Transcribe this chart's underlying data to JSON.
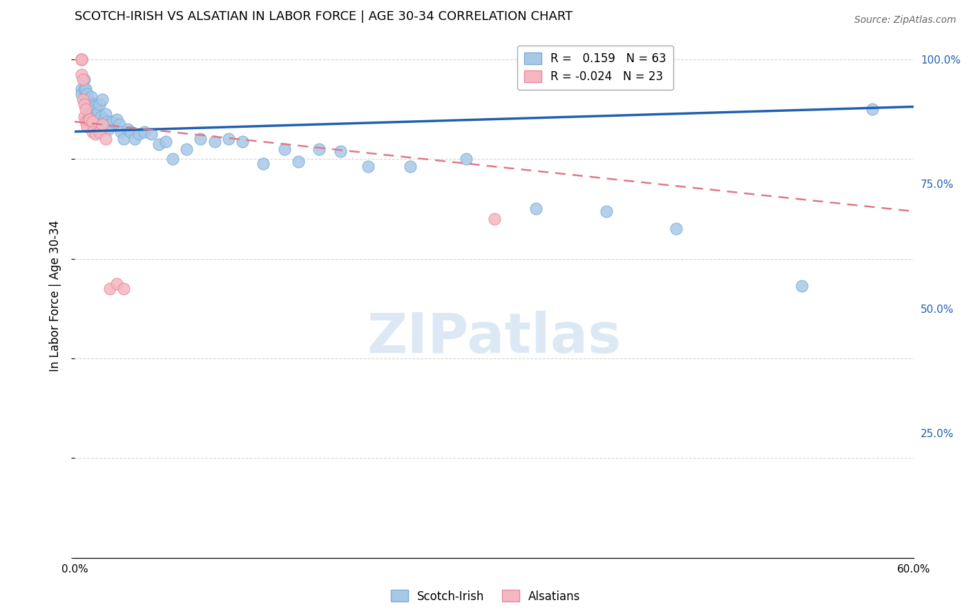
{
  "title": "SCOTCH-IRISH VS ALSATIAN IN LABOR FORCE | AGE 30-34 CORRELATION CHART",
  "source": "Source: ZipAtlas.com",
  "xlabel": "",
  "ylabel": "In Labor Force | Age 30-34",
  "xlim": [
    0.0,
    0.6
  ],
  "ylim": [
    0.0,
    1.05
  ],
  "xticks": [
    0.0,
    0.1,
    0.2,
    0.3,
    0.4,
    0.5,
    0.6
  ],
  "xticklabels": [
    "0.0%",
    "",
    "",
    "",
    "",
    "",
    "60.0%"
  ],
  "yticks_right": [
    0.0,
    0.25,
    0.5,
    0.75,
    1.0
  ],
  "ytick_labels_right": [
    "",
    "25.0%",
    "50.0%",
    "75.0%",
    "100.0%"
  ],
  "legend_blue_R": "0.159",
  "legend_blue_N": "63",
  "legend_pink_R": "-0.024",
  "legend_pink_N": "23",
  "blue_color": "#a8c8e8",
  "blue_edge_color": "#7aadd0",
  "pink_color": "#f5b8c0",
  "pink_edge_color": "#e888a0",
  "line_blue_color": "#2060b0",
  "line_pink_color": "#e07888",
  "watermark": "ZIPatlas",
  "watermark_color": "#dce9f5",
  "blue_line_x0": 0.0,
  "blue_line_y0": 0.855,
  "blue_line_x1": 0.6,
  "blue_line_y1": 0.905,
  "pink_line_x0": 0.0,
  "pink_line_y0": 0.875,
  "pink_line_x1": 0.6,
  "pink_line_y1": 0.695,
  "blue_scatter_x": [
    0.005,
    0.005,
    0.007,
    0.007,
    0.008,
    0.008,
    0.009,
    0.009,
    0.01,
    0.01,
    0.01,
    0.01,
    0.01,
    0.01,
    0.012,
    0.012,
    0.013,
    0.013,
    0.014,
    0.015,
    0.015,
    0.016,
    0.017,
    0.018,
    0.019,
    0.02,
    0.021,
    0.022,
    0.023,
    0.024,
    0.025,
    0.027,
    0.03,
    0.032,
    0.033,
    0.035,
    0.038,
    0.04,
    0.043,
    0.046,
    0.05,
    0.055,
    0.06,
    0.065,
    0.07,
    0.08,
    0.09,
    0.1,
    0.11,
    0.12,
    0.135,
    0.15,
    0.16,
    0.175,
    0.19,
    0.21,
    0.24,
    0.28,
    0.33,
    0.38,
    0.43,
    0.52,
    0.57
  ],
  "blue_scatter_y": [
    0.94,
    0.93,
    0.96,
    0.94,
    0.94,
    0.92,
    0.93,
    0.915,
    0.92,
    0.91,
    0.9,
    0.895,
    0.885,
    0.875,
    0.925,
    0.905,
    0.895,
    0.88,
    0.91,
    0.905,
    0.89,
    0.9,
    0.895,
    0.91,
    0.885,
    0.92,
    0.88,
    0.89,
    0.875,
    0.86,
    0.87,
    0.875,
    0.88,
    0.87,
    0.855,
    0.84,
    0.86,
    0.855,
    0.84,
    0.85,
    0.855,
    0.85,
    0.83,
    0.835,
    0.8,
    0.82,
    0.84,
    0.835,
    0.84,
    0.835,
    0.79,
    0.82,
    0.795,
    0.82,
    0.815,
    0.785,
    0.785,
    0.8,
    0.7,
    0.695,
    0.66,
    0.545,
    0.9
  ],
  "pink_scatter_x": [
    0.005,
    0.005,
    0.005,
    0.005,
    0.006,
    0.006,
    0.007,
    0.007,
    0.008,
    0.008,
    0.009,
    0.01,
    0.011,
    0.013,
    0.013,
    0.015,
    0.018,
    0.02,
    0.022,
    0.025,
    0.03,
    0.035,
    0.3
  ],
  "pink_scatter_y": [
    1.0,
    1.0,
    1.0,
    0.97,
    0.96,
    0.92,
    0.91,
    0.885,
    0.9,
    0.875,
    0.865,
    0.88,
    0.88,
    0.875,
    0.855,
    0.85,
    0.855,
    0.87,
    0.84,
    0.54,
    0.55,
    0.54,
    0.68
  ]
}
